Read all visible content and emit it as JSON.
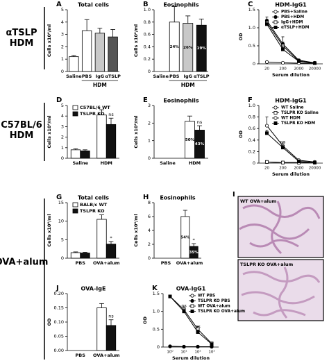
{
  "row_labels": [
    [
      "αTSLP",
      "HDM"
    ],
    [
      "C57BL/6",
      "HDM"
    ],
    [
      "OVA+alum"
    ]
  ],
  "chart_data": [
    {
      "panel": "A",
      "type": "bar",
      "title": "Total cells",
      "y_label": "Cells x10⁶/ml",
      "categories": [
        "Saline",
        "PBS",
        "IgG",
        "αTSLP"
      ],
      "group_label": "HDM",
      "values": [
        1.2,
        3.3,
        3.1,
        2.8
      ],
      "errors": [
        0.1,
        0.9,
        0.4,
        0.6
      ],
      "colors": [
        "#ffffff",
        "#ffffff",
        "#c8c8c8",
        "#555555"
      ],
      "ylim": [
        0,
        5
      ],
      "yticks": [
        0,
        1,
        2,
        3,
        4,
        5
      ]
    },
    {
      "panel": "B",
      "type": "bar",
      "title": "Eosinophils",
      "y_label": "Cells x10⁶/ml",
      "categories": [
        "Saline",
        "PBS",
        "IgG",
        "αTSLP"
      ],
      "group_label": "HDM",
      "values": [
        0,
        0.8,
        0.78,
        0.75
      ],
      "errors": [
        null,
        0.25,
        0.12,
        0.1
      ],
      "colors": [
        "#ffffff",
        "#ffffff",
        "#c8c8c8",
        "#111111"
      ],
      "inner_labels": [
        null,
        "24%",
        "26%",
        "19%"
      ],
      "ylim": [
        0,
        1
      ],
      "yticks": [
        0,
        0.2,
        0.4,
        0.6,
        0.8,
        {
          "value": 1,
          "label": "1.0"
        }
      ]
    },
    {
      "panel": "C",
      "type": "line",
      "title": "HDM-IgG1",
      "y_label": "OD",
      "x_label": "Serum dilution",
      "categories": [
        "20",
        "200",
        "2000",
        "20000"
      ],
      "ylim": [
        0,
        1.5
      ],
      "yticks": [
        0,
        0.5,
        {
          "value": 1,
          "label": "1.0"
        },
        1.5
      ],
      "legend": "upper right",
      "series": [
        {
          "name": "PBS+Saline",
          "color": "#000000",
          "marker": "circle-open",
          "values": [
            0.05,
            0.03,
            0.02,
            0.02
          ],
          "errors": [
            null,
            null,
            null,
            null
          ]
        },
        {
          "name": "PBS+HDM",
          "color": "#000000",
          "marker": "circle-filled",
          "values": [
            1.2,
            0.55,
            0.1,
            0.03
          ],
          "errors": [
            0.1,
            0.2,
            0.03,
            null
          ]
        },
        {
          "name": "IgG+HDM",
          "color": "#000000",
          "marker": "square-open",
          "values": [
            1.15,
            0.5,
            0.08,
            0.02
          ],
          "errors": [
            0.08,
            0.1,
            null,
            null
          ]
        },
        {
          "name": "αTSLP+HDM",
          "color": "#000000",
          "marker": "square-filled",
          "values": [
            1.1,
            0.4,
            0.07,
            0.02
          ],
          "errors": [
            0.08,
            0.1,
            null,
            null
          ]
        }
      ]
    },
    {
      "panel": "D",
      "type": "bar",
      "y_label": "Cells x10⁶/ml",
      "categories": [
        "Saline",
        "HDM"
      ],
      "ylim": [
        0,
        5
      ],
      "yticks": [
        0,
        1,
        2,
        3,
        4,
        5
      ],
      "legend": "upper left",
      "series": [
        {
          "name": "C57BL/6 WT",
          "color": "#ffffff",
          "values": [
            0.8,
            4.1
          ],
          "errors": [
            0.1,
            0.5
          ]
        },
        {
          "name": "TSLPR KO",
          "color": "#111111",
          "values": [
            0.7,
            3.2
          ],
          "errors": [
            0.1,
            0.6
          ],
          "annotations": [
            null,
            "ns"
          ]
        }
      ]
    },
    {
      "panel": "E",
      "type": "bar",
      "title": "Eosinophils",
      "y_label": "Cells x10⁶/ml",
      "categories": [
        "Saline",
        "HDM"
      ],
      "ylim": [
        0,
        3
      ],
      "yticks": [
        0,
        1,
        2,
        3
      ],
      "series": [
        {
          "color": "#ffffff",
          "values": [
            0,
            2.1
          ],
          "errors": [
            null,
            0.3
          ],
          "inner_labels": [
            null,
            "50%"
          ]
        },
        {
          "color": "#111111",
          "values": [
            0,
            1.6
          ],
          "errors": [
            null,
            0.25
          ],
          "inner_labels": [
            null,
            "43%"
          ],
          "annotations": [
            null,
            "ns"
          ]
        }
      ]
    },
    {
      "panel": "F",
      "type": "line",
      "title": "HDM-IgG1",
      "y_label": "OD",
      "x_label": "Serum dilution",
      "categories": [
        "20",
        "200",
        "2000",
        "20000"
      ],
      "ylim": [
        0,
        1
      ],
      "yticks": [
        0,
        0.2,
        0.4,
        0.6,
        0.8,
        {
          "value": 1,
          "label": "1.0"
        }
      ],
      "legend": "upper right",
      "series": [
        {
          "name": "WT Saline",
          "color": "#000000",
          "marker": "circle-open",
          "values": [
            0.02,
            0.01,
            0.01,
            0.01
          ],
          "errors": [
            null,
            null,
            null,
            null
          ]
        },
        {
          "name": "TSLPR KO Saline",
          "color": "#000000",
          "marker": "square-open",
          "values": [
            0.02,
            0.01,
            0.01,
            0.01
          ],
          "errors": [
            null,
            null,
            null,
            null
          ]
        },
        {
          "name": "WT HDM",
          "color": "#000000",
          "marker": "circle-open",
          "values": [
            0.65,
            0.3,
            0.05,
            0.02
          ],
          "errors": [
            0.15,
            0.05,
            null,
            null
          ]
        },
        {
          "name": "TSLPR KO HDM",
          "color": "#000000",
          "marker": "square-filled",
          "values": [
            0.52,
            0.27,
            0.03,
            0.01
          ],
          "errors": [
            0.05,
            0.04,
            null,
            null
          ],
          "annotations": [
            null,
            "ns",
            null,
            null
          ]
        }
      ]
    },
    {
      "panel": "G",
      "type": "bar",
      "title": "Total cells",
      "y_label": "Cells x10⁶/ml",
      "categories": [
        "PBS",
        "OVA+alum"
      ],
      "ylim": [
        0,
        15
      ],
      "yticks": [
        0,
        5,
        10,
        15
      ],
      "legend": "upper left",
      "series": [
        {
          "name": "BALB/c WT",
          "color": "#ffffff",
          "values": [
            1.5,
            10.5
          ],
          "errors": [
            0.2,
            1.2
          ]
        },
        {
          "name": "TSLPR KO",
          "color": "#111111",
          "values": [
            1.4,
            3.8
          ],
          "errors": [
            0.2,
            0.7
          ],
          "annotations": [
            null,
            "*"
          ]
        }
      ]
    },
    {
      "panel": "H",
      "type": "bar",
      "title": "Eosinophils",
      "y_label": "Cells x10⁶/ml",
      "categories": [
        "PBS",
        "OVA+alum"
      ],
      "ylim": [
        0,
        8
      ],
      "yticks": [
        0,
        2,
        4,
        6,
        8
      ],
      "series": [
        {
          "color": "#ffffff",
          "values": [
            0,
            6
          ],
          "errors": [
            null,
            0.9
          ],
          "inner_labels": [
            null,
            "54%"
          ]
        },
        {
          "color": "#111111",
          "values": [
            0,
            1.7
          ],
          "errors": [
            null,
            0.4
          ],
          "inner_labels": [
            null,
            "35%"
          ],
          "annotations": [
            null,
            "*"
          ]
        }
      ]
    },
    {
      "panel": "J",
      "type": "bar",
      "title": "OVA-IgE",
      "y_label": "OD",
      "categories": [
        "PBS",
        "OVA+alum"
      ],
      "ylim": [
        0,
        0.2
      ],
      "yticks": [
        {
          "value": 0,
          "label": "0.00"
        },
        0.05,
        {
          "value": 0.1,
          "label": "0.10"
        },
        0.15,
        {
          "value": 0.2,
          "label": "0.20"
        }
      ],
      "series": [
        {
          "color": "#ffffff",
          "values": [
            0,
            0.15
          ],
          "errors": [
            null,
            0.015
          ]
        },
        {
          "color": "#111111",
          "values": [
            0,
            0.088
          ],
          "errors": [
            null,
            0.02
          ],
          "annotations": [
            null,
            "ns"
          ]
        }
      ]
    },
    {
      "panel": "K",
      "type": "line",
      "title": "OVA-IgG1",
      "y_label": "OD",
      "x_label": "Serum dilution",
      "categories": [
        "10⁰",
        "10¹",
        "10²",
        "10³"
      ],
      "ylim": [
        0,
        1.5
      ],
      "yticks": [
        0,
        0.5,
        {
          "value": 1,
          "label": "1.0"
        },
        1.5
      ],
      "legend": "upper right",
      "series": [
        {
          "name": "WT PBS",
          "color": "#000000",
          "marker": "circle-open",
          "values": [
            0.02,
            0.01,
            0.01,
            0.01
          ],
          "errors": [
            null,
            null,
            null,
            null
          ]
        },
        {
          "name": "TSLPR KO PBS",
          "color": "#000000",
          "marker": "circle-filled",
          "values": [
            0.02,
            0.01,
            0.01,
            0.01
          ],
          "errors": [
            null,
            null,
            null,
            null
          ]
        },
        {
          "name": "WT OVA+alum",
          "color": "#000000",
          "marker": "square-open",
          "values": [
            1.42,
            1.05,
            0.5,
            0.1
          ],
          "errors": [
            0.03,
            0.08,
            0.08,
            0.03
          ]
        },
        {
          "name": "TSLPR KO OVA+alum",
          "color": "#000000",
          "marker": "square-filled",
          "values": [
            1.42,
            1.0,
            0.42,
            0.08
          ],
          "errors": [
            0.03,
            0.06,
            0.06,
            0.02
          ],
          "annotations": [
            null,
            "ns",
            "ns",
            null
          ]
        }
      ]
    }
  ],
  "images": {
    "panel": "I",
    "captions": [
      "WT OVA+alum",
      "TSLPR KO OVA+alum"
    ]
  }
}
